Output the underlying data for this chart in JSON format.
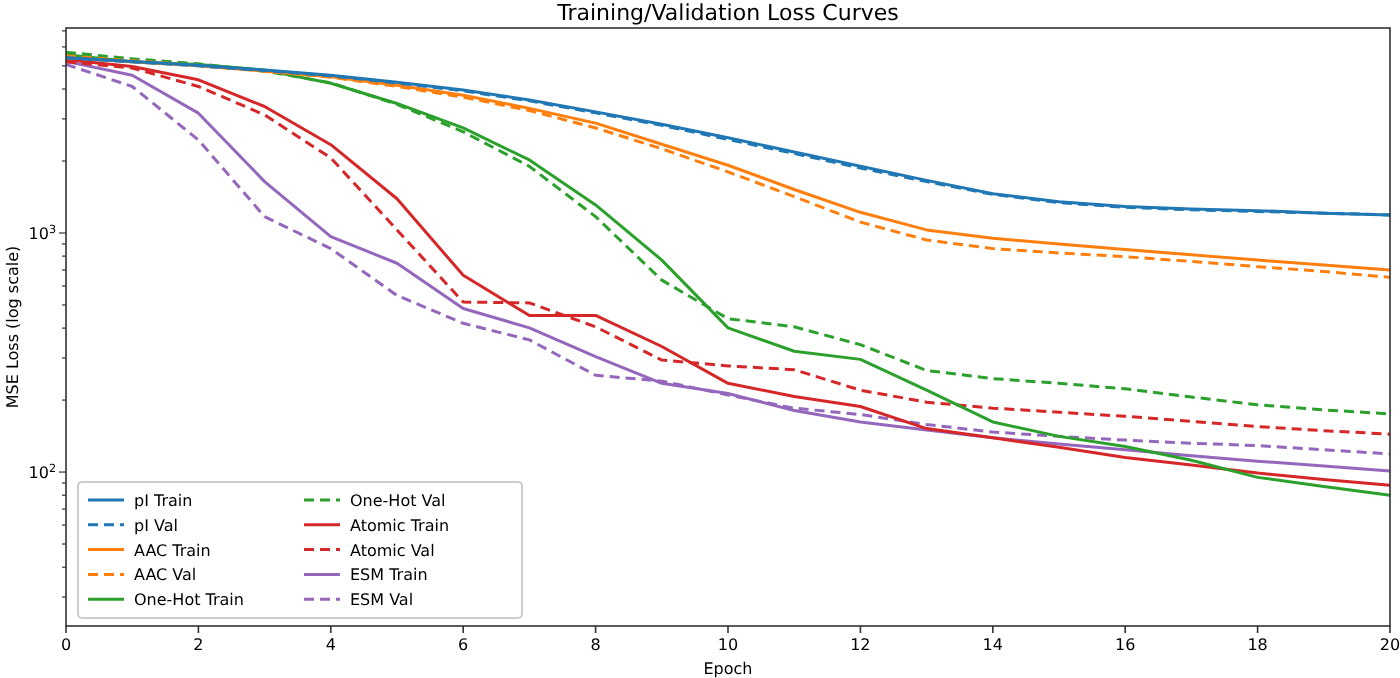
{
  "chart_data": {
    "type": "line",
    "title": "Training/Validation Loss Curves",
    "xlabel": "Epoch",
    "ylabel": "MSE Loss (log scale)",
    "log": "y",
    "legend": "bottom left",
    "grid": false,
    "marker": "none",
    "x": [
      0,
      1,
      2,
      3,
      4,
      5,
      6,
      7,
      8,
      9,
      10,
      11,
      12,
      13,
      14,
      15,
      16,
      17,
      18,
      19,
      20
    ],
    "xlim": [
      0,
      20
    ],
    "xticks": [
      0,
      2,
      4,
      6,
      8,
      10,
      12,
      14,
      16,
      18,
      20
    ],
    "ylim": [
      22.7,
      7200
    ],
    "yticks": [
      {
        "value": 30,
        "label": null
      },
      {
        "value": 40,
        "label": null
      },
      {
        "value": 50,
        "label": null
      },
      {
        "value": 60,
        "label": null
      },
      {
        "value": 70,
        "label": null
      },
      {
        "value": 80,
        "label": null
      },
      {
        "value": 90,
        "label": null
      },
      {
        "value": 100,
        "label": "10$^{2}$"
      },
      {
        "value": 200,
        "label": null
      },
      {
        "value": 300,
        "label": null
      },
      {
        "value": 400,
        "label": null
      },
      {
        "value": 500,
        "label": null
      },
      {
        "value": 600,
        "label": null
      },
      {
        "value": 700,
        "label": null
      },
      {
        "value": 800,
        "label": null
      },
      {
        "value": 900,
        "label": null
      },
      {
        "value": 1000,
        "label": "10$^{3}$"
      },
      {
        "value": 2000,
        "label": null
      },
      {
        "value": 3000,
        "label": null
      },
      {
        "value": 4000,
        "label": null
      },
      {
        "value": 5000,
        "label": null
      },
      {
        "value": 6000,
        "label": null
      },
      {
        "value": 7000,
        "label": null
      }
    ],
    "series": [
      {
        "name": "pI Train",
        "color": "#1f77b4",
        "line_style": "solid",
        "values": [
          5400,
          5220,
          5030,
          4800,
          4570,
          4270,
          3960,
          3600,
          3210,
          2850,
          2500,
          2180,
          1900,
          1660,
          1460,
          1350,
          1290,
          1260,
          1240,
          1210,
          1190
        ]
      },
      {
        "name": "pI Val",
        "color": "#1f77b4",
        "line_style": "dashed",
        "values": [
          5400,
          5200,
          5000,
          4780,
          4540,
          4240,
          3930,
          3570,
          3180,
          2820,
          2460,
          2150,
          1870,
          1640,
          1450,
          1340,
          1280,
          1250,
          1230,
          1210,
          1190
        ]
      },
      {
        "name": "AAC Train",
        "color": "#ff7f0e",
        "line_style": "solid",
        "values": [
          5400,
          5200,
          5000,
          4750,
          4500,
          4150,
          3770,
          3320,
          2880,
          2350,
          1920,
          1520,
          1220,
          1030,
          950,
          900,
          853,
          810,
          770,
          735,
          700
        ]
      },
      {
        "name": "AAC Val",
        "color": "#ff7f0e",
        "line_style": "dashed",
        "values": [
          5500,
          5250,
          5020,
          4760,
          4480,
          4100,
          3700,
          3250,
          2750,
          2250,
          1800,
          1420,
          1110,
          935,
          860,
          825,
          796,
          760,
          723,
          690,
          652
        ]
      },
      {
        "name": "One-Hot Train",
        "color": "#2ca02c",
        "line_style": "solid",
        "values": [
          5570,
          5200,
          5070,
          4800,
          4230,
          3480,
          2750,
          2020,
          1310,
          770,
          401,
          320,
          296,
          220,
          162,
          141,
          128,
          112,
          95,
          87,
          80
        ]
      },
      {
        "name": "One-Hot Val",
        "color": "#2ca02c",
        "line_style": "dashed",
        "values": [
          5700,
          5350,
          5100,
          4750,
          4250,
          3450,
          2650,
          1900,
          1170,
          635,
          438,
          405,
          341,
          266,
          246,
          235,
          223,
          206,
          191,
          182,
          175
        ]
      },
      {
        "name": "Atomic Train",
        "color": "#d62728",
        "line_style": "solid",
        "values": [
          5300,
          4970,
          4370,
          3380,
          2340,
          1390,
          665,
          452,
          452,
          335,
          235,
          207,
          188,
          152,
          139,
          127,
          115,
          107,
          99,
          93,
          88
        ]
      },
      {
        "name": "Atomic Val",
        "color": "#d62728",
        "line_style": "dashed",
        "values": [
          5200,
          4900,
          4100,
          3120,
          2060,
          1030,
          514,
          510,
          405,
          294,
          278,
          268,
          220,
          196,
          185,
          178,
          171,
          163,
          155,
          149,
          144
        ]
      },
      {
        "name": "ESM Train",
        "color": "#9467bd",
        "line_style": "solid",
        "values": [
          5220,
          4570,
          3170,
          1640,
          966,
          747,
          483,
          401,
          304,
          235,
          213,
          181,
          162,
          150,
          139,
          131,
          124,
          117,
          111,
          106,
          101
        ]
      },
      {
        "name": "ESM Val",
        "color": "#9467bd",
        "line_style": "dashed",
        "values": [
          5070,
          4100,
          2450,
          1170,
          860,
          548,
          419,
          357,
          254,
          240,
          210,
          185,
          174,
          158,
          147,
          141,
          136,
          132,
          129,
          124,
          119
        ]
      }
    ]
  }
}
